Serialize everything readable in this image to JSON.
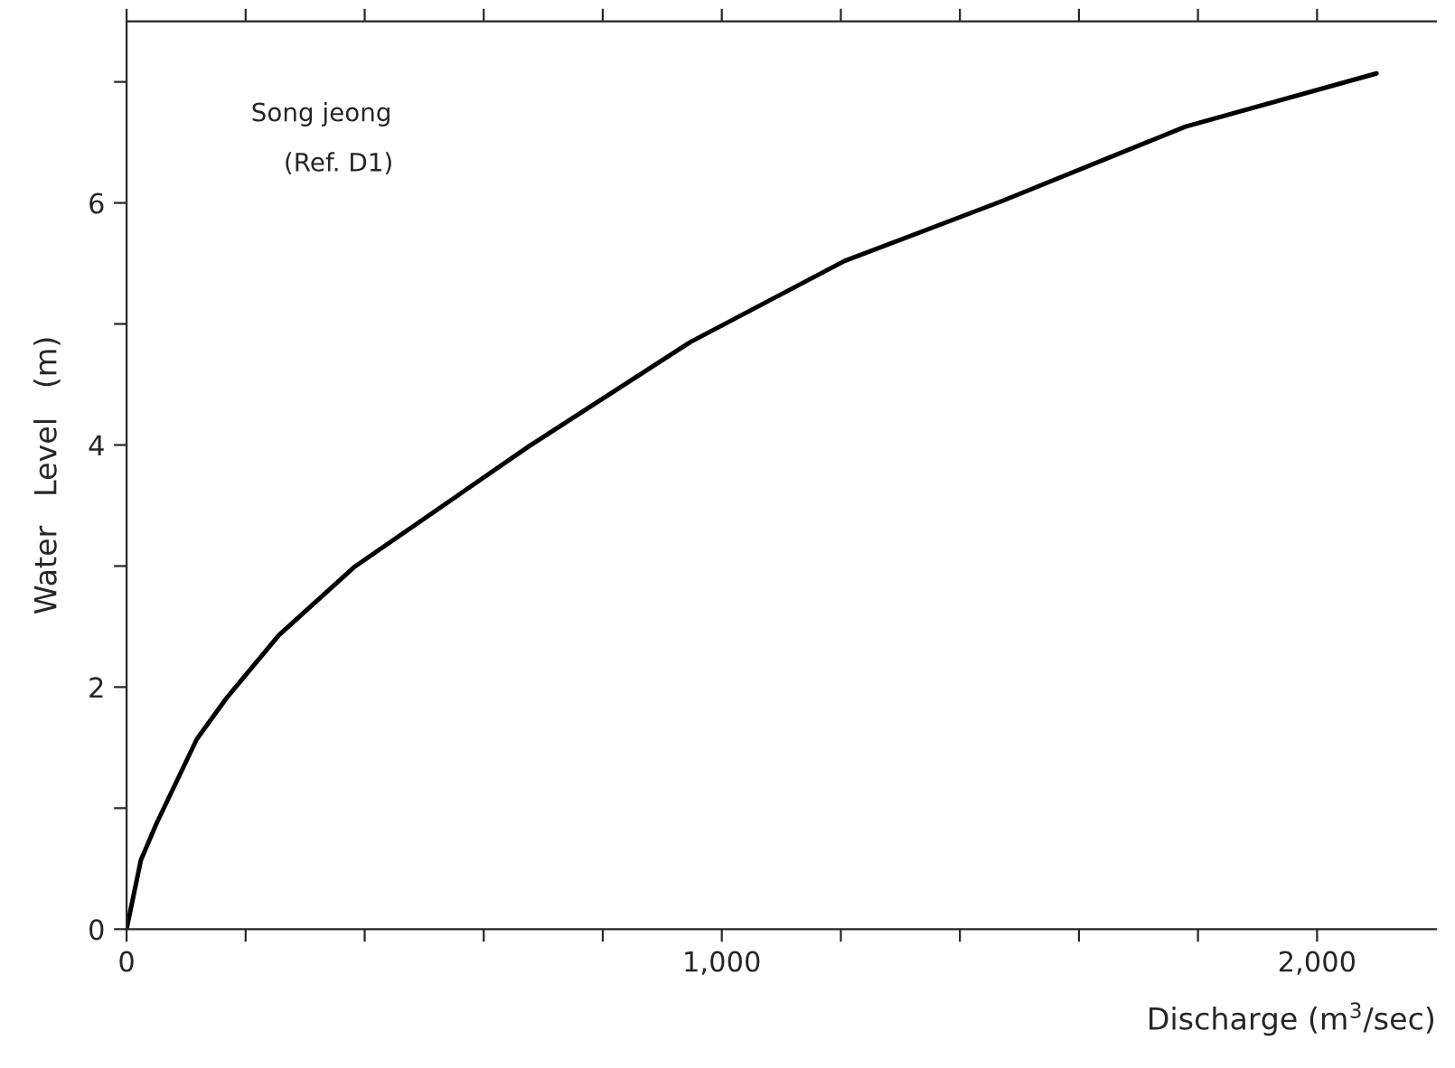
{
  "chart_data": {
    "type": "line",
    "xlabel": "Discharge (m$^{3}$/sec)",
    "ylabel": "Water   Level   (m)",
    "annotations": [
      "Song jeong",
      "(Ref. D1)"
    ],
    "series": [
      {
        "color": "#000000",
        "x": [
          0,
          24,
          50,
          118,
          168,
          256,
          382,
          579,
          676,
          947,
          1206,
          1468,
          1779,
          2100
        ],
        "values": [
          0,
          0.57,
          0.87,
          1.57,
          1.91,
          2.43,
          2.99,
          3.66,
          3.99,
          4.85,
          5.52,
          6.01,
          6.63,
          7.07
        ]
      }
    ],
    "xlim": [
      0,
      2200
    ],
    "ylim": [
      0,
      7.5
    ],
    "xticks": [
      0,
      {
        "value": 200,
        "label": null
      },
      {
        "value": 400,
        "label": null
      },
      {
        "value": 600,
        "label": null
      },
      {
        "value": 800,
        "label": null
      },
      {
        "value": 1000,
        "label": "1,000"
      },
      {
        "value": 1200,
        "label": null
      },
      {
        "value": 1400,
        "label": null
      },
      {
        "value": 1600,
        "label": null
      },
      {
        "value": 1800,
        "label": null
      },
      {
        "value": 2000,
        "label": "2,000"
      }
    ],
    "yticks": [
      0,
      {
        "value": 1,
        "label": null
      },
      2,
      {
        "value": 3,
        "label": null
      },
      4,
      {
        "value": 5,
        "label": null
      },
      6,
      {
        "value": 7,
        "label": null
      }
    ],
    "grid": false,
    "legend": false,
    "marker": "none",
    "line_style": "solid"
  }
}
